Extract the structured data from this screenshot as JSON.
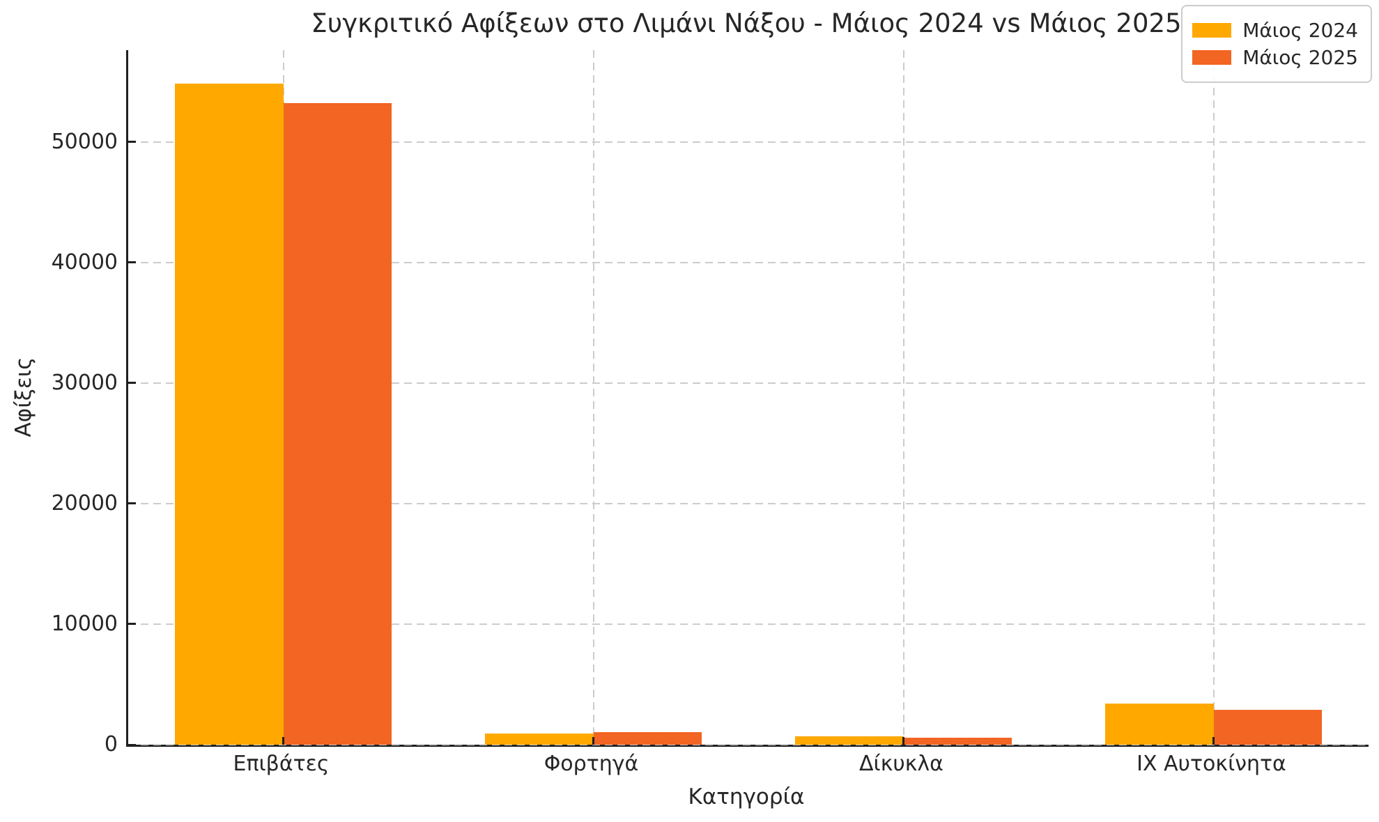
{
  "chart_data": {
    "type": "bar",
    "title": "Συγκριτικό Αφίξεων στο Λιμάνι Νάξου - Μάιος 2024 vs Μάιος 2025",
    "xlabel": "Κατηγορία",
    "ylabel": "Αφίξεις",
    "categories": [
      "Επιβάτες",
      "Φορτηγά",
      "Δίκυκλα",
      "ΙΧ Αυτοκίνητα"
    ],
    "series": [
      {
        "name": "Μάιος 2024",
        "color": "#FFA800",
        "values": [
          54850,
          900,
          700,
          3400
        ]
      },
      {
        "name": "Μάιος 2025",
        "color": "#F26522",
        "values": [
          53200,
          1050,
          600,
          2900
        ]
      }
    ],
    "ylim": [
      0,
      57600
    ],
    "yticks": [
      0,
      10000,
      20000,
      30000,
      40000,
      50000
    ],
    "grid": true,
    "grid_style": "dashed",
    "grid_color": "#cccccc",
    "legend_position": "upper right",
    "bar_width_fraction": 0.35
  },
  "colors": {
    "background": "#ffffff",
    "text": "#262626",
    "spine": "#1f1f1f",
    "grid": "#cccccc",
    "series_2024": "#FFA800",
    "series_2025": "#F26522"
  }
}
